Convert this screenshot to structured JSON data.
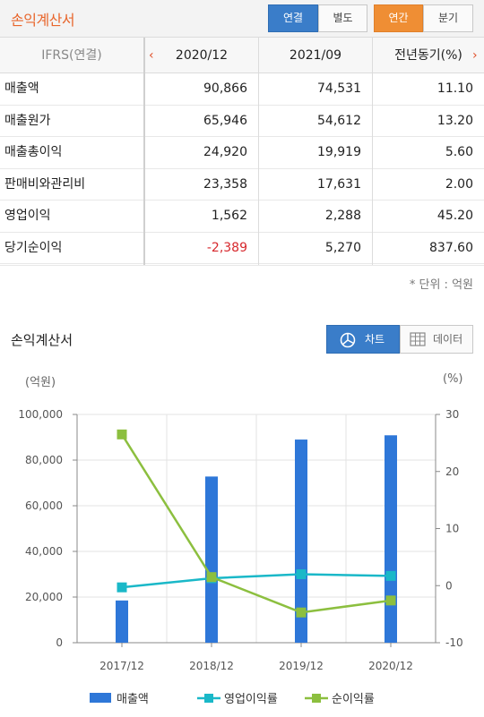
{
  "header": {
    "title": "손익계산서",
    "tabs_consolidation": [
      "연결",
      "별도"
    ],
    "tabs_period": [
      "연간",
      "분기"
    ]
  },
  "table": {
    "header_label": "IFRS(연결)",
    "columns": [
      "2020/12",
      "2021/09",
      "전년동기(%)"
    ],
    "rows": [
      {
        "label": "매출액",
        "values": [
          "90,866",
          "74,531",
          "11.10"
        ]
      },
      {
        "label": "매출원가",
        "values": [
          "65,946",
          "54,612",
          "13.20"
        ]
      },
      {
        "label": "매출총이익",
        "values": [
          "24,920",
          "19,919",
          "5.60"
        ]
      },
      {
        "label": "판매비와관리비",
        "values": [
          "23,358",
          "17,631",
          "2.00"
        ]
      },
      {
        "label": "영업이익",
        "values": [
          "1,562",
          "2,288",
          "45.20"
        ]
      },
      {
        "label": "당기순이익",
        "values": [
          "-2,389",
          "5,270",
          "837.60"
        ]
      }
    ],
    "unit_note": "* 단위 : 억원",
    "negative_color": "#d7282d"
  },
  "chart_section": {
    "title": "손익계산서",
    "toggle_chart": "차트",
    "toggle_data": "데이터"
  },
  "chart_data": {
    "type": "bar",
    "categories": [
      "2017/12",
      "2018/12",
      "2019/12",
      "2020/12"
    ],
    "left_axis_unit": "(억원)",
    "right_axis_unit": "(%)",
    "left_ylim": [
      0,
      100000
    ],
    "right_ylim": [
      -10,
      30
    ],
    "left_ticks": [
      "100,000",
      "80,000",
      "60,000",
      "40,000",
      "20,000",
      "0"
    ],
    "right_ticks": [
      "30",
      "20",
      "10",
      "0",
      "-10"
    ],
    "series": [
      {
        "name": "매출액",
        "kind": "bar",
        "axis": "left",
        "color": "#2e77d8",
        "values": [
          18500,
          72800,
          89000,
          90866
        ]
      },
      {
        "name": "영업이익률",
        "kind": "line",
        "axis": "right",
        "color": "#1ab8c8",
        "values": [
          -0.3,
          1.3,
          2.0,
          1.7
        ]
      },
      {
        "name": "순이익률",
        "kind": "line",
        "axis": "right",
        "color": "#8cbf3f",
        "values": [
          26.5,
          1.5,
          -4.7,
          -2.6
        ]
      }
    ],
    "legend_position": "bottom",
    "grid": true
  }
}
